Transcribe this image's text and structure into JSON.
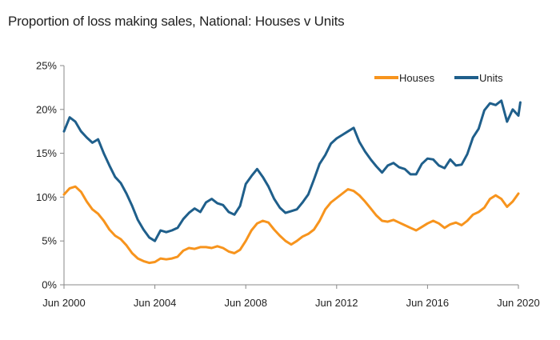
{
  "chart_data": {
    "type": "line",
    "title": "Proportion of loss making sales, National: Houses v Units",
    "xlabel": "",
    "ylabel": "",
    "ylim": [
      0,
      25
    ],
    "xlim": [
      "2000-06",
      "2020-07"
    ],
    "y_ticks": [
      "0%",
      "5%",
      "10%",
      "15%",
      "20%",
      "25%"
    ],
    "y_tick_values": [
      0,
      5,
      10,
      15,
      20,
      25
    ],
    "x_ticks": [
      "Jun 2000",
      "Jun 2004",
      "Jun 2008",
      "Jun 2012",
      "Jun 2016",
      "Jun 2020"
    ],
    "x_tick_values": [
      "2000-06",
      "2004-06",
      "2008-06",
      "2012-06",
      "2016-06",
      "2020-06"
    ],
    "grid": false,
    "legend_position": "top-right",
    "series": [
      {
        "name": "Houses",
        "color": "#f7941d",
        "points": [
          [
            "2000-06",
            10.3
          ],
          [
            "2000-09",
            11.0
          ],
          [
            "2000-12",
            11.2
          ],
          [
            "2001-03",
            10.6
          ],
          [
            "2001-06",
            9.5
          ],
          [
            "2001-09",
            8.6
          ],
          [
            "2001-12",
            8.1
          ],
          [
            "2002-03",
            7.3
          ],
          [
            "2002-06",
            6.3
          ],
          [
            "2002-09",
            5.6
          ],
          [
            "2002-12",
            5.2
          ],
          [
            "2003-03",
            4.5
          ],
          [
            "2003-06",
            3.6
          ],
          [
            "2003-09",
            3.0
          ],
          [
            "2003-12",
            2.7
          ],
          [
            "2004-03",
            2.5
          ],
          [
            "2004-06",
            2.6
          ],
          [
            "2004-09",
            3.0
          ],
          [
            "2004-12",
            2.9
          ],
          [
            "2005-03",
            3.0
          ],
          [
            "2005-06",
            3.2
          ],
          [
            "2005-09",
            3.9
          ],
          [
            "2005-12",
            4.2
          ],
          [
            "2006-03",
            4.1
          ],
          [
            "2006-06",
            4.3
          ],
          [
            "2006-09",
            4.3
          ],
          [
            "2006-12",
            4.2
          ],
          [
            "2007-03",
            4.4
          ],
          [
            "2007-06",
            4.2
          ],
          [
            "2007-09",
            3.8
          ],
          [
            "2007-12",
            3.6
          ],
          [
            "2008-03",
            4.0
          ],
          [
            "2008-06",
            5.0
          ],
          [
            "2008-09",
            6.2
          ],
          [
            "2008-12",
            7.0
          ],
          [
            "2009-03",
            7.3
          ],
          [
            "2009-06",
            7.1
          ],
          [
            "2009-09",
            6.3
          ],
          [
            "2009-12",
            5.6
          ],
          [
            "2010-03",
            5.0
          ],
          [
            "2010-06",
            4.6
          ],
          [
            "2010-09",
            5.0
          ],
          [
            "2010-12",
            5.5
          ],
          [
            "2011-03",
            5.8
          ],
          [
            "2011-06",
            6.3
          ],
          [
            "2011-09",
            7.3
          ],
          [
            "2011-12",
            8.6
          ],
          [
            "2012-03",
            9.4
          ],
          [
            "2012-06",
            9.9
          ],
          [
            "2012-09",
            10.4
          ],
          [
            "2012-12",
            10.9
          ],
          [
            "2013-03",
            10.7
          ],
          [
            "2013-06",
            10.2
          ],
          [
            "2013-09",
            9.5
          ],
          [
            "2013-12",
            8.7
          ],
          [
            "2014-03",
            7.9
          ],
          [
            "2014-06",
            7.3
          ],
          [
            "2014-09",
            7.2
          ],
          [
            "2014-12",
            7.4
          ],
          [
            "2015-03",
            7.1
          ],
          [
            "2015-06",
            6.8
          ],
          [
            "2015-09",
            6.5
          ],
          [
            "2015-12",
            6.2
          ],
          [
            "2016-03",
            6.6
          ],
          [
            "2016-06",
            7.0
          ],
          [
            "2016-09",
            7.3
          ],
          [
            "2016-12",
            7.0
          ],
          [
            "2017-03",
            6.5
          ],
          [
            "2017-06",
            6.9
          ],
          [
            "2017-09",
            7.1
          ],
          [
            "2017-12",
            6.8
          ],
          [
            "2018-03",
            7.3
          ],
          [
            "2018-06",
            8.0
          ],
          [
            "2018-09",
            8.3
          ],
          [
            "2018-12",
            8.8
          ],
          [
            "2019-03",
            9.8
          ],
          [
            "2019-06",
            10.2
          ],
          [
            "2019-09",
            9.8
          ],
          [
            "2019-12",
            8.9
          ],
          [
            "2020-03",
            9.5
          ],
          [
            "2020-06",
            10.4
          ]
        ]
      },
      {
        "name": "Units",
        "color": "#1f5f8b",
        "points": [
          [
            "2000-06",
            17.5
          ],
          [
            "2000-09",
            19.1
          ],
          [
            "2000-12",
            18.6
          ],
          [
            "2001-03",
            17.5
          ],
          [
            "2001-06",
            16.8
          ],
          [
            "2001-09",
            16.2
          ],
          [
            "2001-12",
            16.6
          ],
          [
            "2002-03",
            15.0
          ],
          [
            "2002-06",
            13.6
          ],
          [
            "2002-09",
            12.3
          ],
          [
            "2002-12",
            11.6
          ],
          [
            "2003-03",
            10.4
          ],
          [
            "2003-06",
            9.0
          ],
          [
            "2003-09",
            7.4
          ],
          [
            "2003-12",
            6.3
          ],
          [
            "2004-03",
            5.4
          ],
          [
            "2004-06",
            5.0
          ],
          [
            "2004-09",
            6.2
          ],
          [
            "2004-12",
            6.0
          ],
          [
            "2005-03",
            6.2
          ],
          [
            "2005-06",
            6.5
          ],
          [
            "2005-09",
            7.5
          ],
          [
            "2005-12",
            8.2
          ],
          [
            "2006-03",
            8.7
          ],
          [
            "2006-06",
            8.3
          ],
          [
            "2006-09",
            9.4
          ],
          [
            "2006-12",
            9.8
          ],
          [
            "2007-03",
            9.3
          ],
          [
            "2007-06",
            9.1
          ],
          [
            "2007-09",
            8.3
          ],
          [
            "2007-12",
            8.0
          ],
          [
            "2008-03",
            9.0
          ],
          [
            "2008-06",
            11.5
          ],
          [
            "2008-09",
            12.4
          ],
          [
            "2008-12",
            13.2
          ],
          [
            "2009-03",
            12.3
          ],
          [
            "2009-06",
            11.2
          ],
          [
            "2009-09",
            9.8
          ],
          [
            "2009-12",
            8.8
          ],
          [
            "2010-03",
            8.2
          ],
          [
            "2010-06",
            8.4
          ],
          [
            "2010-09",
            8.6
          ],
          [
            "2010-12",
            9.4
          ],
          [
            "2011-03",
            10.3
          ],
          [
            "2011-06",
            12.0
          ],
          [
            "2011-09",
            13.8
          ],
          [
            "2011-12",
            14.8
          ],
          [
            "2012-03",
            16.1
          ],
          [
            "2012-06",
            16.7
          ],
          [
            "2012-09",
            17.1
          ],
          [
            "2012-12",
            17.5
          ],
          [
            "2013-03",
            17.9
          ],
          [
            "2013-06",
            16.3
          ],
          [
            "2013-09",
            15.2
          ],
          [
            "2013-12",
            14.3
          ],
          [
            "2014-03",
            13.5
          ],
          [
            "2014-06",
            12.8
          ],
          [
            "2014-09",
            13.6
          ],
          [
            "2014-12",
            13.9
          ],
          [
            "2015-03",
            13.4
          ],
          [
            "2015-06",
            13.2
          ],
          [
            "2015-09",
            12.6
          ],
          [
            "2015-12",
            12.6
          ],
          [
            "2016-03",
            13.8
          ],
          [
            "2016-06",
            14.4
          ],
          [
            "2016-09",
            14.3
          ],
          [
            "2016-12",
            13.6
          ],
          [
            "2017-03",
            13.3
          ],
          [
            "2017-06",
            14.3
          ],
          [
            "2017-09",
            13.6
          ],
          [
            "2017-12",
            13.7
          ],
          [
            "2018-03",
            14.9
          ],
          [
            "2018-06",
            16.8
          ],
          [
            "2018-09",
            17.8
          ],
          [
            "2018-12",
            19.9
          ],
          [
            "2019-03",
            20.7
          ],
          [
            "2019-06",
            20.5
          ],
          [
            "2019-09",
            21.0
          ],
          [
            "2019-12",
            18.6
          ],
          [
            "2020-03",
            20.0
          ],
          [
            "2020-06",
            19.3
          ],
          [
            "2020-07",
            20.8
          ]
        ]
      }
    ]
  }
}
